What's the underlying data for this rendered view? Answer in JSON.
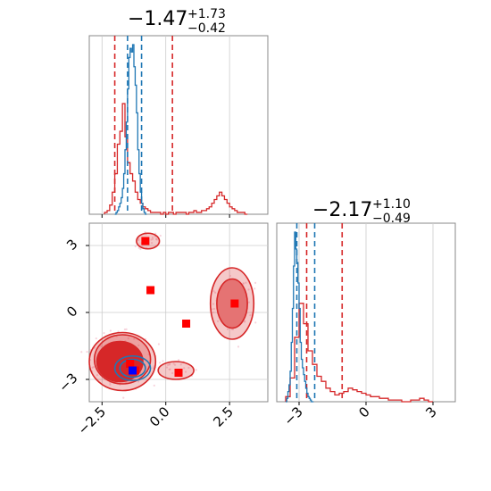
{
  "chart_data": [
    {
      "type": "histogram",
      "panel": "top-left (parameter 1 marginal)",
      "title": {
        "value": "−1.47",
        "plus": "+1.73",
        "minus": "−0.42"
      },
      "xlim": [
        -3.0,
        4.0
      ],
      "grid": true,
      "series": [
        {
          "color": "#d62728",
          "step": 0.1,
          "x_start": -2.4,
          "counts": [
            1,
            2,
            5,
            12,
            22,
            38,
            45,
            60,
            42,
            28,
            22,
            18,
            12,
            8,
            6,
            4,
            3,
            2,
            1,
            1,
            1,
            1,
            0,
            1,
            0,
            1,
            1,
            0,
            1,
            1,
            1,
            1,
            0,
            1,
            1,
            2,
            1,
            1,
            2,
            2,
            3,
            4,
            6,
            8,
            10,
            12,
            10,
            8,
            6,
            4,
            3,
            2,
            1,
            1,
            1,
            0
          ],
          "lines": [
            -2.0,
            0.26
          ]
        },
        {
          "color": "#1f77b4",
          "step": 0.05,
          "x_start": -2.0,
          "counts": [
            0,
            1,
            2,
            4,
            6,
            9,
            14,
            22,
            35,
            50,
            68,
            85,
            90,
            88,
            92,
            80,
            70,
            55,
            35,
            22,
            12,
            6,
            3,
            1,
            0
          ],
          "lines": [
            -1.5,
            -0.95
          ]
        }
      ]
    },
    {
      "type": "histogram",
      "panel": "bottom-right (parameter 2 marginal)",
      "title": {
        "value": "−2.17",
        "plus": "+1.10",
        "minus": "−0.49"
      },
      "xlim": [
        -4.0,
        4.0
      ],
      "grid": true,
      "series": [
        {
          "color": "#d62728",
          "step": 0.2,
          "x_start": -3.6,
          "counts": [
            3,
            14,
            38,
            58,
            46,
            30,
            22,
            15,
            12,
            8,
            6,
            4,
            5,
            6,
            8,
            7,
            6,
            5,
            4,
            3,
            3,
            2,
            2,
            1,
            1,
            1,
            0,
            0,
            1,
            1,
            2,
            1,
            0
          ],
          "lines": [
            -2.66,
            -1.07
          ]
        },
        {
          "color": "#1f77b4",
          "step": 0.05,
          "x_start": -3.6,
          "counts": [
            0,
            2,
            6,
            10,
            18,
            35,
            55,
            80,
            100,
            90,
            82,
            70,
            55,
            35,
            25,
            20,
            16,
            12,
            8,
            5,
            3,
            2,
            1,
            0,
            0
          ],
          "lines": [
            -3.1,
            -2.3
          ]
        }
      ]
    },
    {
      "type": "scatter",
      "panel": "bottom-left (2D corner plot with contours)",
      "xlim": [
        -3.0,
        4.0
      ],
      "ylim": [
        -4.0,
        4.0
      ],
      "grid": true,
      "red_markers": [
        [
          -0.8,
          3.2
        ],
        [
          -0.6,
          1.0
        ],
        [
          0.8,
          -0.5
        ],
        [
          0.5,
          -2.7
        ],
        [
          2.7,
          0.4
        ],
        [
          -1.4,
          -2.3
        ],
        [
          -1.2,
          -2.6
        ]
      ],
      "blue_markers": [
        [
          -1.3,
          -2.6
        ]
      ],
      "red_contours": [
        {
          "cx": -1.7,
          "cy": -2.2,
          "rx": 1.3,
          "ry": 1.3
        },
        {
          "cx": -1.7,
          "cy": -2.1,
          "rx": 1.1,
          "ry": 1.1
        },
        {
          "cx": -1.8,
          "cy": -2.2,
          "rx": 0.9,
          "ry": 0.9
        },
        {
          "cx": 2.6,
          "cy": 0.4,
          "rx": 0.85,
          "ry": 1.6
        },
        {
          "cx": 2.6,
          "cy": 0.4,
          "rx": 0.6,
          "ry": 1.1
        },
        {
          "cx": -0.7,
          "cy": 3.2,
          "rx": 0.45,
          "ry": 0.35
        },
        {
          "cx": 0.4,
          "cy": -2.6,
          "rx": 0.7,
          "ry": 0.4
        }
      ],
      "blue_contours": [
        {
          "cx": -1.3,
          "cy": -2.5,
          "rx": 0.7,
          "ry": 0.55
        },
        {
          "cx": -1.3,
          "cy": -2.5,
          "rx": 0.5,
          "ry": 0.4
        }
      ],
      "x_tick_labels": [
        "−2.5",
        "0.0",
        "2.5"
      ],
      "y_tick_labels": [
        "3",
        "0",
        "−3"
      ],
      "x_ticks": [
        -2.5,
        0.0,
        2.5
      ],
      "y_ticks": [
        3,
        0,
        -3
      ]
    },
    {
      "type": "axis",
      "panel": "bottom-right x-axis",
      "x_tick_labels": [
        "−3",
        "0",
        "3"
      ],
      "x_ticks": [
        -3,
        0,
        3
      ]
    }
  ]
}
